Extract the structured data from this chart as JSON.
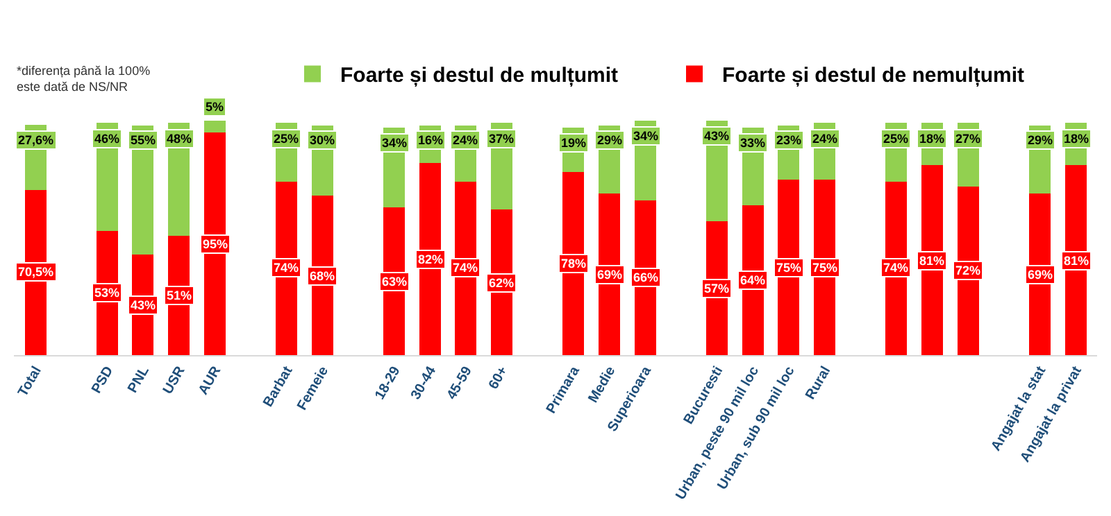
{
  "chart_data": {
    "type": "bar",
    "stacked": true,
    "legend": "top",
    "grid": false,
    "tick_labels": "x",
    "annotations": [
      "*diferența până la 100%\neste dată de NS/NR"
    ],
    "categories": [
      "Total",
      null,
      "PSD",
      "PNL",
      "USR",
      "AUR",
      null,
      "Barbat",
      "Femeie",
      null,
      "18-29",
      "30-44",
      "45-59",
      "60+",
      null,
      "Primara",
      "Medie",
      "Superioara",
      null,
      "Bucuresti",
      "Urban, peste 90 mil loc",
      "Urban, sub 90 mil loc",
      "Rural",
      null,
      null,
      null,
      null,
      null,
      "Angajat la stat",
      "Angajat la privat"
    ],
    "series": [
      {
        "name": "Foarte și destul de nemulțumit",
        "color": "#ff0000",
        "values": [
          70.5,
          null,
          53,
          43,
          51,
          95,
          null,
          74,
          68,
          null,
          63,
          82,
          74,
          62,
          null,
          78,
          69,
          66,
          null,
          57,
          64,
          75,
          75,
          null,
          74,
          81,
          72,
          null,
          69,
          81
        ],
        "value_labels": [
          "70,5%",
          null,
          "53%",
          "43%",
          "51%",
          "95%",
          null,
          "74%",
          "68%",
          null,
          "63%",
          "82%",
          "74%",
          "62%",
          null,
          "78%",
          "69%",
          "66%",
          null,
          "57%",
          "64%",
          "75%",
          "75%",
          null,
          "74%",
          "81%",
          "72%",
          null,
          "69%",
          "81%"
        ]
      },
      {
        "name": "Foarte și destul de mulțumit",
        "color": "#92d050",
        "values": [
          27.6,
          null,
          46,
          55,
          48,
          5,
          null,
          25,
          30,
          null,
          34,
          16,
          24,
          37,
          null,
          19,
          29,
          34,
          null,
          43,
          33,
          23,
          24,
          null,
          25,
          18,
          27,
          null,
          29,
          18
        ],
        "value_labels": [
          "27,6%",
          null,
          "46%",
          "55%",
          "48%",
          "5%",
          null,
          "25%",
          "30%",
          null,
          "34%",
          "16%",
          "24%",
          "37%",
          null,
          "19%",
          "29%",
          "34%",
          null,
          "43%",
          "33%",
          "23%",
          "24%",
          null,
          "25%",
          "18%",
          "27%",
          null,
          "29%",
          "18%"
        ]
      }
    ]
  }
}
